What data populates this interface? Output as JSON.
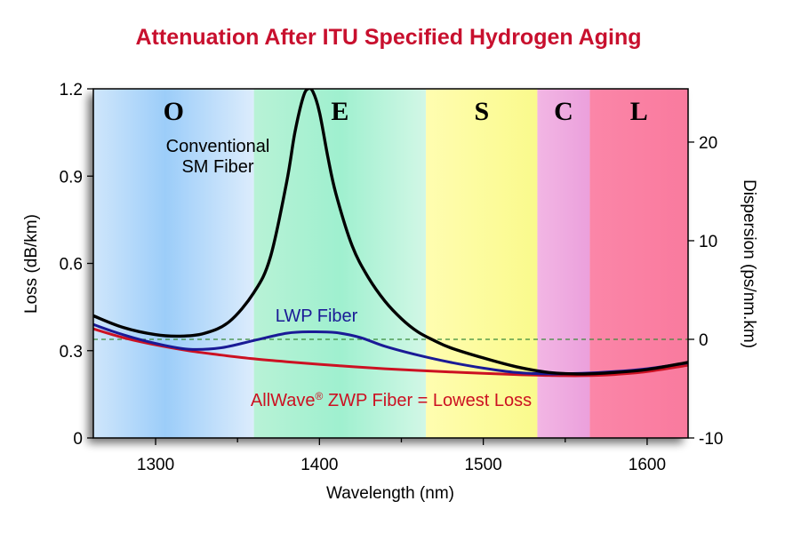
{
  "chart_data": {
    "type": "line",
    "title": "Attenuation After ITU Specified Hydrogen Aging",
    "xlabel": "Wavelength (nm)",
    "ylabel": "Loss (dB/km)",
    "y2label": "Dispersion (ps/nm.km)",
    "xlim": [
      1262,
      1625
    ],
    "ylim": [
      0,
      1.2
    ],
    "y2lim": [
      -10,
      25.4
    ],
    "x_ticks": [
      1300,
      1400,
      1500,
      1600
    ],
    "y_ticks": [
      0,
      0.3,
      0.6,
      0.9,
      1.2
    ],
    "y_tick_labels": [
      "0",
      "0.3",
      "0.6",
      "0.9",
      "1.2"
    ],
    "y2_ticks": [
      -10,
      0,
      10,
      20
    ],
    "y2_tick_labels": [
      "-10",
      "0",
      "10",
      "20"
    ],
    "grid": false,
    "bands": [
      {
        "label": "O",
        "start": 1262,
        "end": 1360,
        "color": "#9fcff8"
      },
      {
        "label": "E",
        "start": 1360,
        "end": 1465,
        "color": "#a3f0cf"
      },
      {
        "label": "S",
        "start": 1465,
        "end": 1533,
        "color": "#fdfca0"
      },
      {
        "label": "C",
        "start": 1533,
        "end": 1565,
        "color": "#f0a8e2"
      },
      {
        "label": "L",
        "start": 1565,
        "end": 1625,
        "color": "#fa82a3"
      }
    ],
    "series": [
      {
        "name": "Conventional SM Fiber",
        "color": "#000000",
        "x": [
          1262,
          1280,
          1300,
          1315,
          1330,
          1345,
          1360,
          1370,
          1380,
          1385,
          1390,
          1393,
          1396,
          1400,
          1405,
          1410,
          1420,
          1430,
          1440,
          1450,
          1460,
          1470,
          1480,
          1500,
          1520,
          1540,
          1560,
          1580,
          1600,
          1625
        ],
        "y": [
          0.42,
          0.38,
          0.355,
          0.35,
          0.36,
          0.4,
          0.5,
          0.62,
          0.88,
          1.05,
          1.17,
          1.2,
          1.19,
          1.12,
          0.97,
          0.84,
          0.66,
          0.55,
          0.47,
          0.41,
          0.365,
          0.335,
          0.31,
          0.275,
          0.245,
          0.225,
          0.22,
          0.225,
          0.235,
          0.26
        ]
      },
      {
        "name": "LWP Fiber",
        "color": "#1a1a96",
        "x": [
          1262,
          1280,
          1300,
          1320,
          1340,
          1360,
          1380,
          1395,
          1410,
          1425,
          1440,
          1460,
          1480,
          1500,
          1520,
          1540,
          1560,
          1580,
          1600,
          1625
        ],
        "y": [
          0.39,
          0.355,
          0.325,
          0.305,
          0.31,
          0.335,
          0.36,
          0.365,
          0.362,
          0.345,
          0.315,
          0.285,
          0.26,
          0.24,
          0.225,
          0.22,
          0.222,
          0.228,
          0.238,
          0.258
        ]
      },
      {
        "name": "AllWave® ZWP Fiber = Lowest Loss",
        "color": "#cc1122",
        "x": [
          1262,
          1280,
          1300,
          1320,
          1340,
          1360,
          1380,
          1400,
          1420,
          1440,
          1460,
          1480,
          1500,
          1520,
          1540,
          1560,
          1580,
          1600,
          1625
        ],
        "y": [
          0.375,
          0.345,
          0.32,
          0.3,
          0.285,
          0.272,
          0.262,
          0.253,
          0.245,
          0.238,
          0.232,
          0.227,
          0.222,
          0.218,
          0.215,
          0.214,
          0.218,
          0.228,
          0.25
        ]
      }
    ],
    "reference_line": {
      "axis": "y2",
      "value": 0,
      "color": "#3a8a3a",
      "style": "dashed"
    },
    "annotations": [
      {
        "text": "Conventional",
        "series": 0
      },
      {
        "text": "SM Fiber",
        "series": 0
      },
      {
        "text": "LWP Fiber",
        "series": 1
      },
      {
        "text": "AllWave",
        "superscript": "®",
        "rest": " ZWP Fiber = Lowest Loss",
        "series": 2
      }
    ]
  }
}
